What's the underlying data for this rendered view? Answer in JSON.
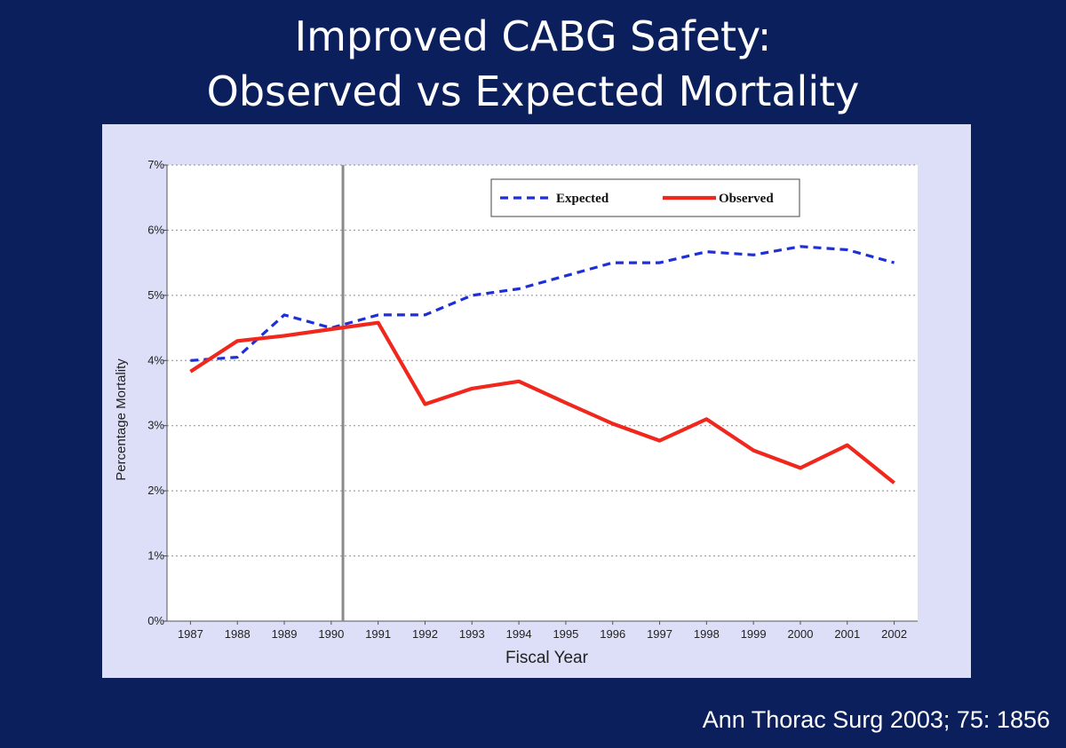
{
  "slide": {
    "title_line1": "Improved CABG Safety:",
    "title_line2": "Observed vs Expected Mortality",
    "citation": "Ann Thorac Surg 2003; 75: 1856",
    "colors": {
      "background": "#0b1f5c",
      "panel": "#dcdff7",
      "expected": "#1f2fd6",
      "observed": "#f0271c",
      "marker_line": "#8a8a8a"
    }
  },
  "chart_data": {
    "type": "line",
    "title": "",
    "xlabel": "Fiscal Year",
    "ylabel": "Percentage Mortality",
    "categories": [
      "1987",
      "1988",
      "1989",
      "1990",
      "1991",
      "1992",
      "1993",
      "1994",
      "1995",
      "1996",
      "1997",
      "1998",
      "1999",
      "2000",
      "2001",
      "2002"
    ],
    "ylim": [
      0,
      7
    ],
    "yticks": [
      0,
      1,
      2,
      3,
      4,
      5,
      6,
      7
    ],
    "ytick_labels": [
      "0%",
      "1%",
      "2%",
      "3%",
      "4%",
      "5%",
      "6%",
      "7%"
    ],
    "grid": true,
    "legend_position": "top-right",
    "vertical_marker_x": 1990.25,
    "series": [
      {
        "name": "Expected",
        "style": "dashed",
        "color": "#1f2fd6",
        "x": [
          1987,
          1988,
          1989,
          1990,
          1991,
          1992,
          1993,
          1994,
          1995,
          1996,
          1997,
          1998,
          1999,
          2000,
          2001,
          2002
        ],
        "values": [
          4.0,
          4.05,
          4.7,
          4.5,
          4.7,
          4.7,
          5.0,
          5.1,
          5.3,
          5.5,
          5.5,
          5.67,
          5.62,
          5.75,
          5.7,
          5.5
        ]
      },
      {
        "name": "Observed",
        "style": "solid",
        "color": "#f0271c",
        "x": [
          1987,
          1988,
          1989,
          1990,
          1991,
          1992,
          1993,
          1994,
          1995,
          1996,
          1997,
          1998,
          1999,
          2000,
          2001,
          2002
        ],
        "values": [
          3.83,
          4.3,
          4.38,
          4.48,
          4.58,
          3.33,
          3.57,
          3.68,
          3.35,
          3.03,
          2.77,
          3.1,
          2.62,
          2.35,
          2.7,
          2.12
        ]
      }
    ]
  }
}
